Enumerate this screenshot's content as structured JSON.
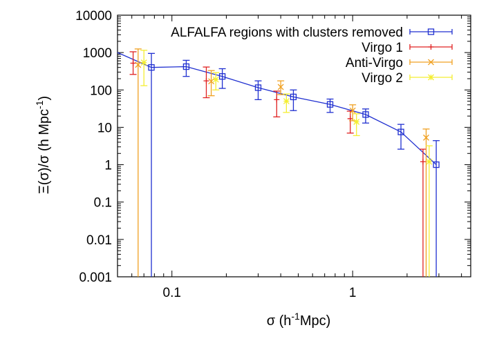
{
  "chart_data": {
    "type": "line",
    "xscale": "log",
    "yscale": "log",
    "xlim": [
      0.05,
      4.5
    ],
    "ylim": [
      0.001,
      10000
    ],
    "grid": false,
    "legend_position": "top-right",
    "xlabel_parts": [
      "σ  (h",
      "-1",
      "Mpc)"
    ],
    "ylabel_parts": [
      "Ξ(σ)/σ (h Mpc",
      "-1",
      ")"
    ],
    "x_ticks": [
      {
        "value": 0.1,
        "label": "0.1"
      },
      {
        "value": 1,
        "label": "1"
      }
    ],
    "y_ticks": [
      {
        "value": 0.001,
        "label": "0.001"
      },
      {
        "value": 0.01,
        "label": "0.01"
      },
      {
        "value": 0.1,
        "label": "0.1"
      },
      {
        "value": 1,
        "label": "1"
      },
      {
        "value": 10,
        "label": "10"
      },
      {
        "value": 100,
        "label": "100"
      },
      {
        "value": 1000,
        "label": "1000"
      },
      {
        "value": 10000,
        "label": "10000"
      }
    ],
    "series": [
      {
        "name": "ALFALFA regions with clusters removed",
        "color": "#1f2fd0",
        "marker": "square",
        "connected": true,
        "points": [
          {
            "x": 0.077,
            "y": 400,
            "lo": 0.001,
            "hi": 950
          },
          {
            "x": 0.12,
            "y": 420,
            "lo": 230,
            "hi": 620
          },
          {
            "x": 0.19,
            "y": 230,
            "lo": 110,
            "hi": 370
          },
          {
            "x": 0.3,
            "y": 115,
            "lo": 55,
            "hi": 175
          },
          {
            "x": 0.47,
            "y": 65,
            "lo": 28,
            "hi": 100
          },
          {
            "x": 0.75,
            "y": 41,
            "lo": 25,
            "hi": 57
          },
          {
            "x": 1.18,
            "y": 22,
            "lo": 13,
            "hi": 31
          },
          {
            "x": 1.85,
            "y": 7.5,
            "lo": 2.6,
            "hi": 12
          },
          {
            "x": 2.9,
            "y": 1.0,
            "lo": 0.001,
            "hi": 4.4
          }
        ],
        "lead_in": {
          "x": 0.05,
          "y": 1000
        }
      },
      {
        "name": "Virgo 1",
        "color": "#e02020",
        "marker": "plus",
        "connected": false,
        "points": [
          {
            "x": 0.061,
            "y": 520,
            "lo": 260,
            "hi": 1050
          },
          {
            "x": 0.155,
            "y": 175,
            "lo": 62,
            "hi": 410
          },
          {
            "x": 0.38,
            "y": 55,
            "lo": 19,
            "hi": 93
          },
          {
            "x": 0.97,
            "y": 17,
            "lo": 7,
            "hi": 27
          },
          {
            "x": 2.45,
            "y": 1.2,
            "lo": 0.001,
            "hi": 2.6
          }
        ]
      },
      {
        "name": "Anti-Virgo",
        "color": "#f0a020",
        "marker": "x",
        "connected": false,
        "points": [
          {
            "x": 0.065,
            "y": 470,
            "lo": 0.001,
            "hi": 1250
          },
          {
            "x": 0.165,
            "y": 170,
            "lo": 70,
            "hi": 330
          },
          {
            "x": 0.4,
            "y": 120,
            "lo": 75,
            "hi": 175
          },
          {
            "x": 1.0,
            "y": 28,
            "lo": 15,
            "hi": 40
          },
          {
            "x": 2.55,
            "y": 5.3,
            "lo": 0.001,
            "hi": 9
          }
        ]
      },
      {
        "name": "Virgo 2",
        "color": "#f4ee30",
        "marker": "star",
        "connected": false,
        "points": [
          {
            "x": 0.07,
            "y": 540,
            "lo": 130,
            "hi": 1150
          },
          {
            "x": 0.175,
            "y": 190,
            "lo": 100,
            "hi": 290
          },
          {
            "x": 0.43,
            "y": 50,
            "lo": 25,
            "hi": 78
          },
          {
            "x": 1.05,
            "y": 14,
            "lo": 6,
            "hi": 23
          },
          {
            "x": 2.65,
            "y": 1.2,
            "lo": 0.001,
            "hi": 3.2
          }
        ]
      }
    ]
  }
}
